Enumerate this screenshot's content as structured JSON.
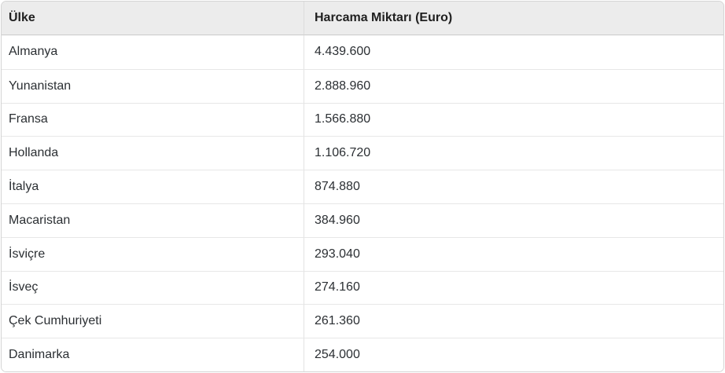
{
  "table": {
    "columns": [
      {
        "label": "Ülke"
      },
      {
        "label": "Harcama Miktarı (Euro)"
      }
    ],
    "rows": [
      {
        "country": "Almanya",
        "amount": "4.439.600"
      },
      {
        "country": "Yunanistan",
        "amount": "2.888.960"
      },
      {
        "country": "Fransa",
        "amount": "1.566.880"
      },
      {
        "country": "Hollanda",
        "amount": "1.106.720"
      },
      {
        "country": "İtalya",
        "amount": "874.880"
      },
      {
        "country": "Macaristan",
        "amount": "384.960"
      },
      {
        "country": "İsviçre",
        "amount": "293.040"
      },
      {
        "country": "İsveç",
        "amount": "274.160"
      },
      {
        "country": "Çek Cumhuriyeti",
        "amount": "261.360"
      },
      {
        "country": "Danimarka",
        "amount": "254.000"
      }
    ]
  },
  "chart_data": {
    "type": "table",
    "title": "",
    "columns": [
      "Ülke",
      "Harcama Miktarı (Euro)"
    ],
    "categories": [
      "Almanya",
      "Yunanistan",
      "Fransa",
      "Hollanda",
      "İtalya",
      "Macaristan",
      "İsviçre",
      "İsveç",
      "Çek Cumhuriyeti",
      "Danimarka"
    ],
    "values": [
      4439600,
      2888960,
      1566880,
      1106720,
      874880,
      384960,
      293040,
      274160,
      261360,
      254000
    ],
    "value_display_format": "tr-TR (dot as thousands separator)",
    "sort": "descending by amount"
  },
  "colors": {
    "header_bg": "#ececec",
    "header_border": "#c9c9c9",
    "row_border": "#e7e7e7",
    "column_divider": "#e3e3e3",
    "outer_border": "#d4d4d4",
    "text": "#212529",
    "row_bg": "#ffffff"
  }
}
